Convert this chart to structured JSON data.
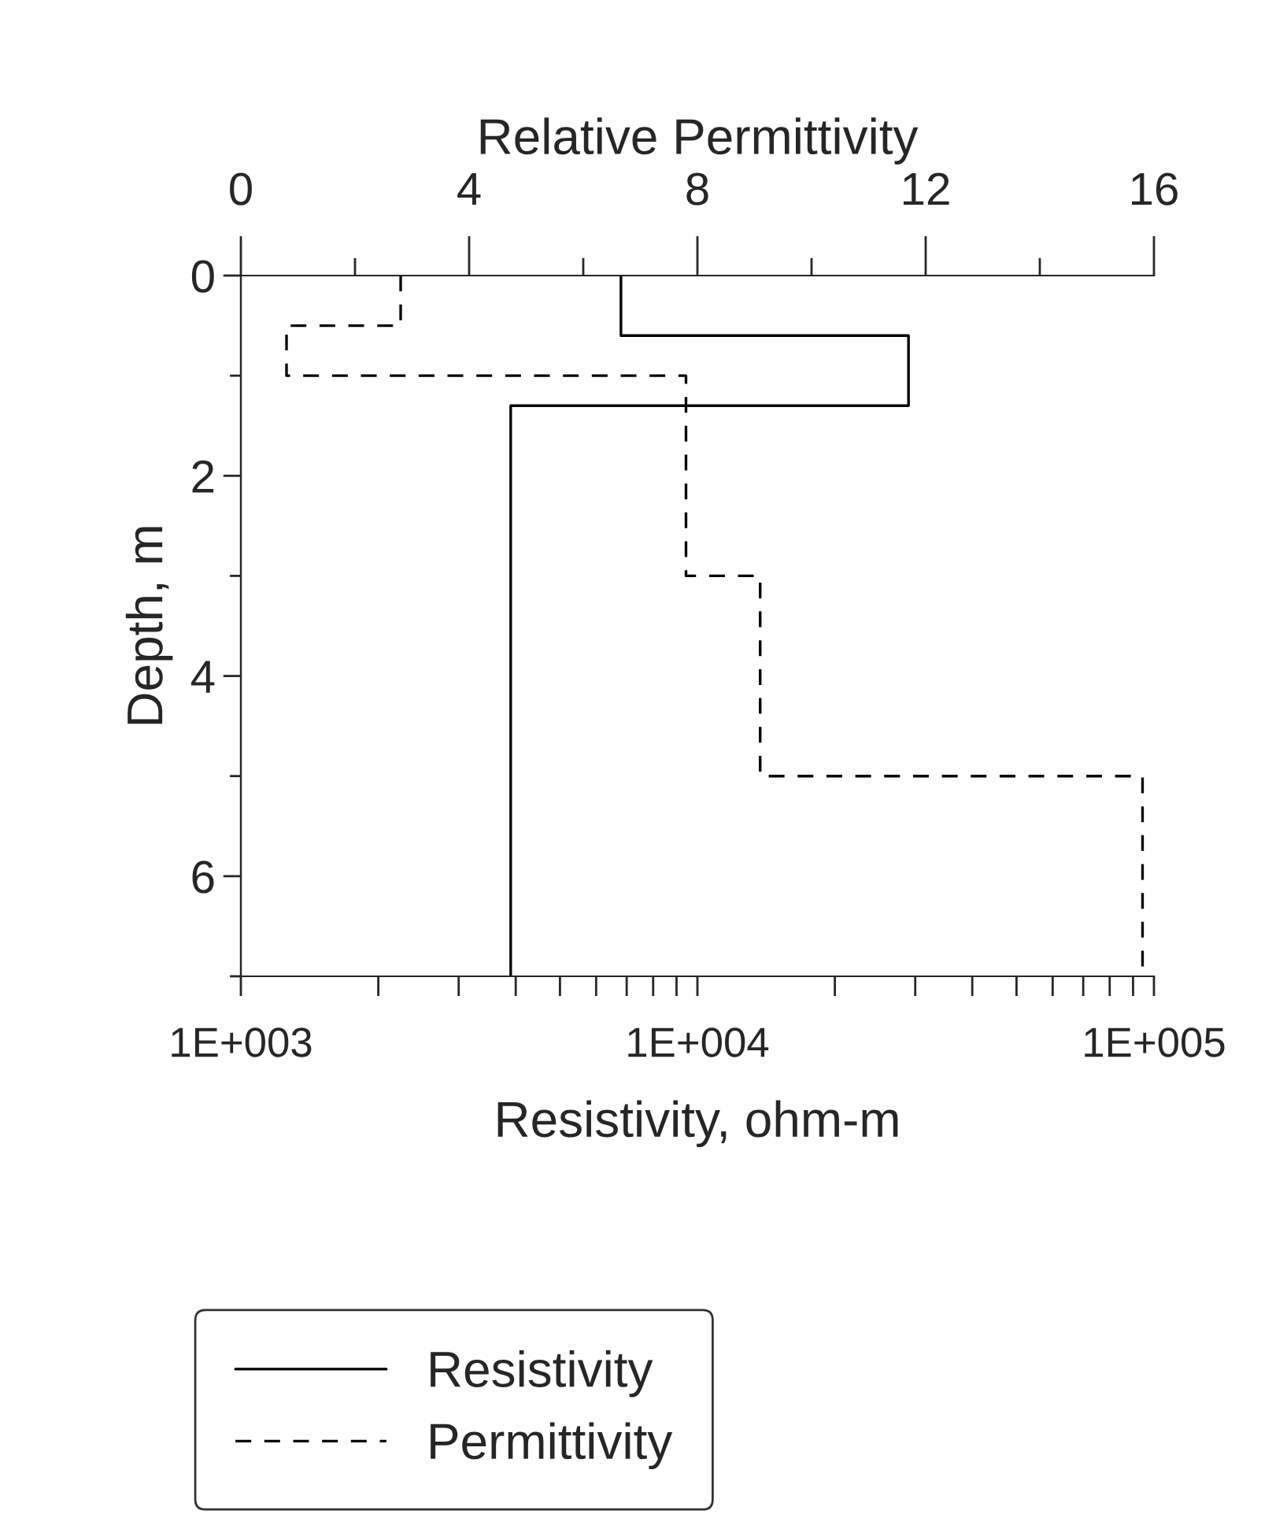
{
  "chart_data": {
    "type": "line",
    "xlabel": "Resistivity, ohm-m",
    "x2label": "Relative Permittivity",
    "ylabel": "Depth, m",
    "log": "x",
    "grid": false,
    "legend": "bottom",
    "marker": "none",
    "xlim": [
      1000,
      100000
    ],
    "xticks": [
      {
        "value": 1000,
        "label": "1E+003"
      },
      {
        "value": 2000,
        "label": null
      },
      {
        "value": 3000,
        "label": null
      },
      {
        "value": 4000,
        "label": null
      },
      {
        "value": 5000,
        "label": null
      },
      {
        "value": 6000,
        "label": null
      },
      {
        "value": 7000,
        "label": null
      },
      {
        "value": 8000,
        "label": null
      },
      {
        "value": 9000,
        "label": null
      },
      {
        "value": 10000,
        "label": "1E+004"
      },
      {
        "value": 20000,
        "label": null
      },
      {
        "value": 30000,
        "label": null
      },
      {
        "value": 40000,
        "label": null
      },
      {
        "value": 50000,
        "label": null
      },
      {
        "value": 60000,
        "label": null
      },
      {
        "value": 70000,
        "label": null
      },
      {
        "value": 80000,
        "label": null
      },
      {
        "value": 90000,
        "label": null
      },
      {
        "value": 100000,
        "label": "1E+005"
      }
    ],
    "x2lim": [
      0,
      16
    ],
    "x2ticks": [
      0,
      {
        "value": 2,
        "label": null
      },
      4,
      {
        "value": 6,
        "label": null
      },
      8,
      {
        "value": 10,
        "label": null
      },
      12,
      {
        "value": 14,
        "label": null
      },
      16
    ],
    "ylim": [
      7,
      0
    ],
    "yticks": [
      0,
      {
        "value": 1,
        "label": null
      },
      2,
      {
        "value": 3,
        "label": null
      },
      4,
      {
        "value": 5,
        "label": null
      },
      6,
      {
        "value": 7,
        "label": null
      }
    ],
    "series": [
      {
        "name": "Resistivity",
        "color": "#000000",
        "line_style": "solid",
        "x": [
          6800,
          6800,
          29000,
          29000,
          3900,
          3900
        ],
        "values": [
          0,
          0.6,
          0.6,
          1.3,
          1.3,
          7
        ]
      },
      {
        "name": "Permittivity",
        "color": "#000000",
        "line_style": "dashed",
        "axis": "x2",
        "x": [
          2.8,
          2.8,
          0.8,
          0.8,
          7.8,
          7.8,
          9.1,
          9.1,
          15.8,
          15.8
        ],
        "values": [
          0,
          0.5,
          0.5,
          1.0,
          1.0,
          3.0,
          3.0,
          5.0,
          5.0,
          7
        ]
      }
    ]
  }
}
